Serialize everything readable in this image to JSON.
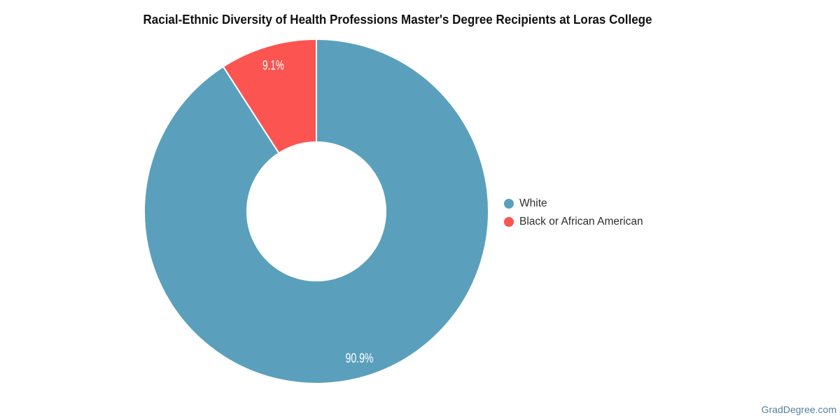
{
  "title": "Racial-Ethnic Diversity of Health Professions Master's Degree Recipients at Loras College",
  "watermark": "GradDegree.com",
  "chart_data": {
    "type": "pie",
    "subtype": "donut",
    "title": "Racial-Ethnic Diversity of Health Professions Master's Degree Recipients at Loras College",
    "categories": [
      "White",
      "Black or African American"
    ],
    "values": [
      90.9,
      9.1
    ],
    "slice_labels": [
      "90.9%",
      "9.1%"
    ],
    "colors": [
      "#5AA0BC",
      "#FC5451"
    ],
    "slice_label_color": "#ffffff",
    "legend_position": "middle-right",
    "start_angle_deg": 0,
    "direction": "clockwise"
  }
}
